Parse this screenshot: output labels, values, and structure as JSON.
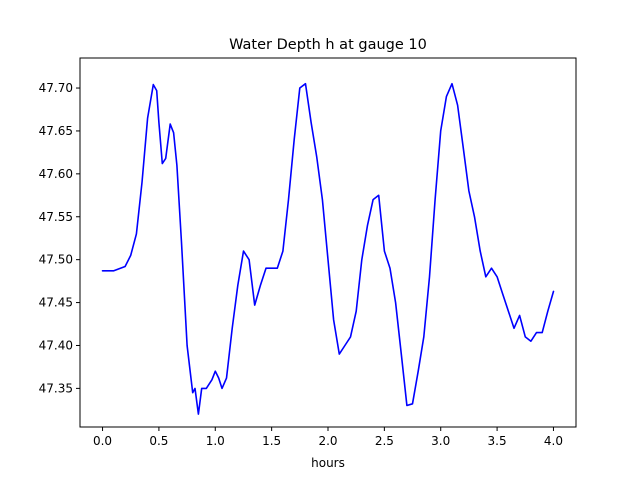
{
  "chart_data": {
    "type": "line",
    "title": "Water Depth h at gauge 10",
    "xlabel": "hours",
    "ylabel": "",
    "xlim": [
      -0.2,
      4.2
    ],
    "ylim": [
      47.305,
      47.735
    ],
    "xticks": [
      0.0,
      0.5,
      1.0,
      1.5,
      2.0,
      2.5,
      3.0,
      3.5,
      4.0
    ],
    "xtick_labels": [
      "0.0",
      "0.5",
      "1.0",
      "1.5",
      "2.0",
      "2.5",
      "3.0",
      "3.5",
      "4.0"
    ],
    "yticks": [
      47.35,
      47.4,
      47.45,
      47.5,
      47.55,
      47.6,
      47.65,
      47.7
    ],
    "ytick_labels": [
      "47.35",
      "47.40",
      "47.45",
      "47.50",
      "47.55",
      "47.60",
      "47.65",
      "47.70"
    ],
    "grid": false,
    "series": [
      {
        "color": "#0000ff",
        "x": [
          0.0,
          0.1,
          0.2,
          0.25,
          0.3,
          0.35,
          0.4,
          0.45,
          0.48,
          0.5,
          0.53,
          0.56,
          0.6,
          0.63,
          0.66,
          0.7,
          0.75,
          0.8,
          0.82,
          0.85,
          0.88,
          0.92,
          0.97,
          1.0,
          1.03,
          1.06,
          1.1,
          1.15,
          1.2,
          1.25,
          1.3,
          1.35,
          1.4,
          1.45,
          1.5,
          1.55,
          1.6,
          1.65,
          1.7,
          1.75,
          1.8,
          1.85,
          1.9,
          1.95,
          2.0,
          2.05,
          2.1,
          2.15,
          2.2,
          2.25,
          2.3,
          2.35,
          2.4,
          2.45,
          2.5,
          2.55,
          2.6,
          2.65,
          2.7,
          2.75,
          2.8,
          2.85,
          2.9,
          2.95,
          3.0,
          3.05,
          3.1,
          3.15,
          3.2,
          3.25,
          3.3,
          3.35,
          3.4,
          3.45,
          3.5,
          3.55,
          3.6,
          3.65,
          3.7,
          3.75,
          3.8,
          3.85,
          3.9,
          3.95,
          4.0
        ],
        "y": [
          47.487,
          47.487,
          47.492,
          47.505,
          47.53,
          47.59,
          47.665,
          47.704,
          47.697,
          47.66,
          47.612,
          47.618,
          47.658,
          47.648,
          47.61,
          47.52,
          47.4,
          47.345,
          47.35,
          47.32,
          47.35,
          47.35,
          47.36,
          47.37,
          47.362,
          47.35,
          47.362,
          47.42,
          47.47,
          47.51,
          47.5,
          47.447,
          47.47,
          47.49,
          47.49,
          47.49,
          47.51,
          47.57,
          47.64,
          47.7,
          47.705,
          47.66,
          47.62,
          47.57,
          47.5,
          47.43,
          47.39,
          47.4,
          47.41,
          47.44,
          47.5,
          47.54,
          47.57,
          47.575,
          47.51,
          47.49,
          47.45,
          47.39,
          47.33,
          47.332,
          47.37,
          47.41,
          47.48,
          47.57,
          47.65,
          47.69,
          47.705,
          47.68,
          47.63,
          47.58,
          47.55,
          47.51,
          47.48,
          47.49,
          47.48,
          47.46,
          47.44,
          47.42,
          47.435,
          47.41,
          47.405,
          47.415,
          47.415,
          47.44,
          47.463
        ]
      }
    ]
  }
}
